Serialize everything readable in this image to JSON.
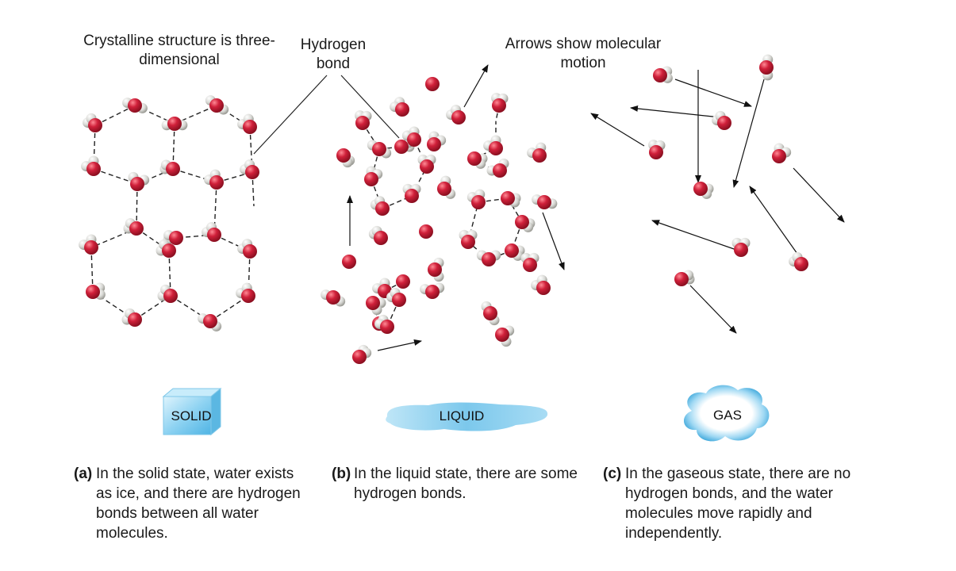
{
  "labels": {
    "crystal": "Crystalline structure is three-dimensional",
    "hbond": "Hydrogen bond",
    "arrows": "Arrows show molecular motion"
  },
  "states": {
    "solid": "SOLID",
    "liquid": "LIQUID",
    "gas": "GAS"
  },
  "captions": {
    "a": {
      "tag": "(a)",
      "text": "In the solid state, water exists as ice, and there are hydrogen bonds between all water molecules."
    },
    "b": {
      "tag": "(b)",
      "text": "In the liquid state, there are some hydrogen bonds."
    },
    "c": {
      "tag": "(c)",
      "text": "In the gaseous state, there are no hydrogen bonds, and the water molecules move rapidly and independently."
    }
  },
  "colors": {
    "oxygen": "#d0203a",
    "hydrogen": "#d8d8d4",
    "ice": "#8fd3f2",
    "liquid": "#7cc8ec",
    "gas": "#6ec3ea"
  }
}
